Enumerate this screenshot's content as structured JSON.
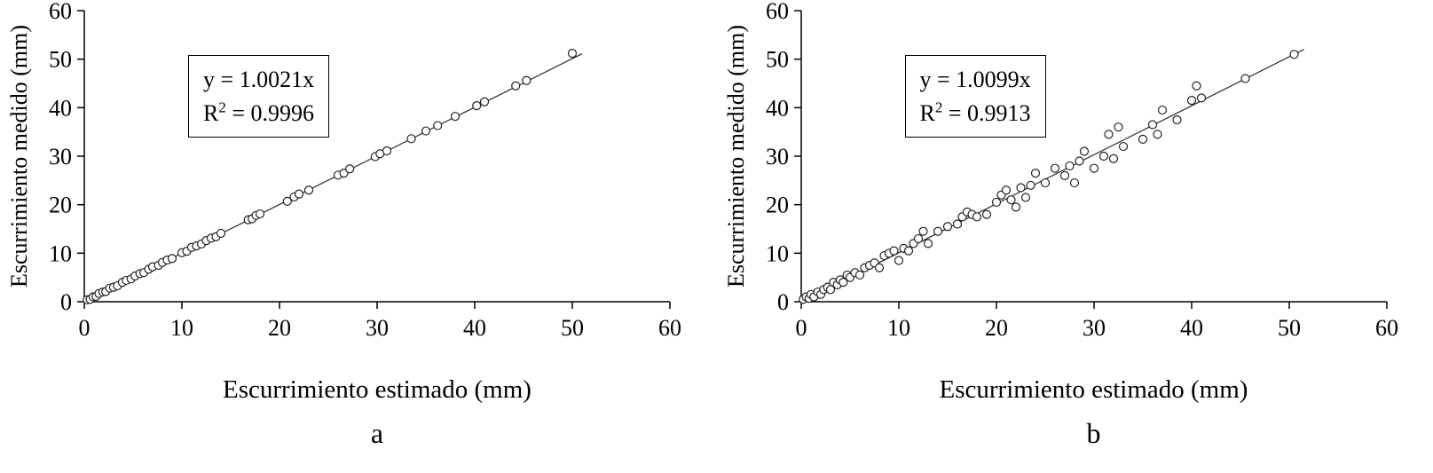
{
  "chart_data": [
    {
      "type": "scatter",
      "panel_label": "a",
      "xlabel": "Escurrimiento estimado (mm)",
      "ylabel": "Escurrimiento medido (mm)",
      "xlim": [
        0,
        60
      ],
      "ylim": [
        0,
        60
      ],
      "xticks": [
        0,
        10,
        20,
        30,
        40,
        50,
        60
      ],
      "yticks": [
        0,
        10,
        20,
        30,
        40,
        50,
        60
      ],
      "equation": "y = 1.0021x",
      "r2_base": "R",
      "r2_exp": "2",
      "r2_rest": " = 0.9996",
      "slope": 1.0021,
      "line": {
        "x0": 0,
        "x1": 51
      },
      "grid": false,
      "legend": "none",
      "marker_color": "#ffffff",
      "marker_stroke": "#222222",
      "points": [
        [
          0.3,
          0.4
        ],
        [
          0.6,
          0.5
        ],
        [
          0.9,
          1.0
        ],
        [
          1.2,
          1.1
        ],
        [
          1.5,
          1.7
        ],
        [
          1.9,
          2.0
        ],
        [
          2.2,
          2.1
        ],
        [
          2.6,
          2.8
        ],
        [
          3.0,
          3.0
        ],
        [
          3.4,
          3.3
        ],
        [
          3.9,
          4.0
        ],
        [
          4.3,
          4.4
        ],
        [
          4.8,
          4.7
        ],
        [
          5.2,
          5.3
        ],
        [
          5.7,
          5.8
        ],
        [
          6.1,
          6.0
        ],
        [
          6.6,
          6.7
        ],
        [
          7.0,
          7.2
        ],
        [
          7.6,
          7.5
        ],
        [
          8.0,
          8.1
        ],
        [
          8.5,
          8.6
        ],
        [
          9.0,
          8.9
        ],
        [
          10.0,
          10.1
        ],
        [
          10.5,
          10.4
        ],
        [
          11.0,
          11.2
        ],
        [
          11.5,
          11.5
        ],
        [
          12.0,
          11.9
        ],
        [
          12.5,
          12.6
        ],
        [
          13.0,
          13.1
        ],
        [
          13.5,
          13.4
        ],
        [
          14.0,
          14.1
        ],
        [
          16.8,
          16.9
        ],
        [
          17.2,
          17.1
        ],
        [
          17.6,
          17.8
        ],
        [
          18.0,
          18.1
        ],
        [
          20.8,
          20.7
        ],
        [
          21.5,
          21.6
        ],
        [
          22.0,
          22.2
        ],
        [
          23.0,
          23.0
        ],
        [
          26.0,
          26.1
        ],
        [
          26.6,
          26.5
        ],
        [
          27.2,
          27.4
        ],
        [
          29.8,
          29.9
        ],
        [
          30.3,
          30.5
        ],
        [
          31.0,
          31.1
        ],
        [
          33.5,
          33.6
        ],
        [
          35.0,
          35.2
        ],
        [
          36.2,
          36.3
        ],
        [
          38.0,
          38.2
        ],
        [
          40.2,
          40.4
        ],
        [
          41.0,
          41.2
        ],
        [
          44.2,
          44.5
        ],
        [
          45.3,
          45.6
        ],
        [
          50.0,
          51.2
        ]
      ]
    },
    {
      "type": "scatter",
      "panel_label": "b",
      "xlabel": "Escurrimiento estimado (mm)",
      "ylabel": "Escurrimiento medido (mm)",
      "xlim": [
        0,
        60
      ],
      "ylim": [
        0,
        60
      ],
      "xticks": [
        0,
        10,
        20,
        30,
        40,
        50,
        60
      ],
      "yticks": [
        0,
        10,
        20,
        30,
        40,
        50,
        60
      ],
      "equation": "y = 1.0099x",
      "r2_base": "R",
      "r2_exp": "2",
      "r2_rest": " = 0.9913",
      "slope": 1.0099,
      "line": {
        "x0": 0,
        "x1": 51.5
      },
      "grid": false,
      "legend": "none",
      "marker_color": "#ffffff",
      "marker_stroke": "#222222",
      "points": [
        [
          0.2,
          0.5
        ],
        [
          0.5,
          1.0
        ],
        [
          0.8,
          0.7
        ],
        [
          1.0,
          1.5
        ],
        [
          1.3,
          1.0
        ],
        [
          1.7,
          2.0
        ],
        [
          2.0,
          1.5
        ],
        [
          2.3,
          2.5
        ],
        [
          2.7,
          3.0
        ],
        [
          3.0,
          2.5
        ],
        [
          3.3,
          4.0
        ],
        [
          3.7,
          3.5
        ],
        [
          4.0,
          4.5
        ],
        [
          4.3,
          4.0
        ],
        [
          4.7,
          5.5
        ],
        [
          5.0,
          5.0
        ],
        [
          5.5,
          6.0
        ],
        [
          6.0,
          5.5
        ],
        [
          6.5,
          7.0
        ],
        [
          7.0,
          7.5
        ],
        [
          7.5,
          8.0
        ],
        [
          8.0,
          7.0
        ],
        [
          8.5,
          9.5
        ],
        [
          9.0,
          10.0
        ],
        [
          9.5,
          10.5
        ],
        [
          10.0,
          8.5
        ],
        [
          10.5,
          11.0
        ],
        [
          11.0,
          10.5
        ],
        [
          11.5,
          12.0
        ],
        [
          12.0,
          13.0
        ],
        [
          12.5,
          14.5
        ],
        [
          13.0,
          12.0
        ],
        [
          14.0,
          14.5
        ],
        [
          15.0,
          15.5
        ],
        [
          16.0,
          16.0
        ],
        [
          16.5,
          17.5
        ],
        [
          17.0,
          18.5
        ],
        [
          17.5,
          18.0
        ],
        [
          18.0,
          17.5
        ],
        [
          19.0,
          18.0
        ],
        [
          20.0,
          20.5
        ],
        [
          20.5,
          22.0
        ],
        [
          21.0,
          23.0
        ],
        [
          21.5,
          21.0
        ],
        [
          22.0,
          19.5
        ],
        [
          22.5,
          23.5
        ],
        [
          23.0,
          21.5
        ],
        [
          23.5,
          24.0
        ],
        [
          24.0,
          26.5
        ],
        [
          25.0,
          24.5
        ],
        [
          26.0,
          27.5
        ],
        [
          27.0,
          26.0
        ],
        [
          27.5,
          28.0
        ],
        [
          28.0,
          24.5
        ],
        [
          28.5,
          29.0
        ],
        [
          29.0,
          31.0
        ],
        [
          30.0,
          27.5
        ],
        [
          31.0,
          30.0
        ],
        [
          31.5,
          34.5
        ],
        [
          32.0,
          29.5
        ],
        [
          32.5,
          36.0
        ],
        [
          33.0,
          32.0
        ],
        [
          35.0,
          33.5
        ],
        [
          36.0,
          36.5
        ],
        [
          36.5,
          34.5
        ],
        [
          37.0,
          39.5
        ],
        [
          38.5,
          37.5
        ],
        [
          40.0,
          41.5
        ],
        [
          40.5,
          44.5
        ],
        [
          41.0,
          42.0
        ],
        [
          45.5,
          46.0
        ],
        [
          50.5,
          51.0
        ]
      ]
    }
  ]
}
